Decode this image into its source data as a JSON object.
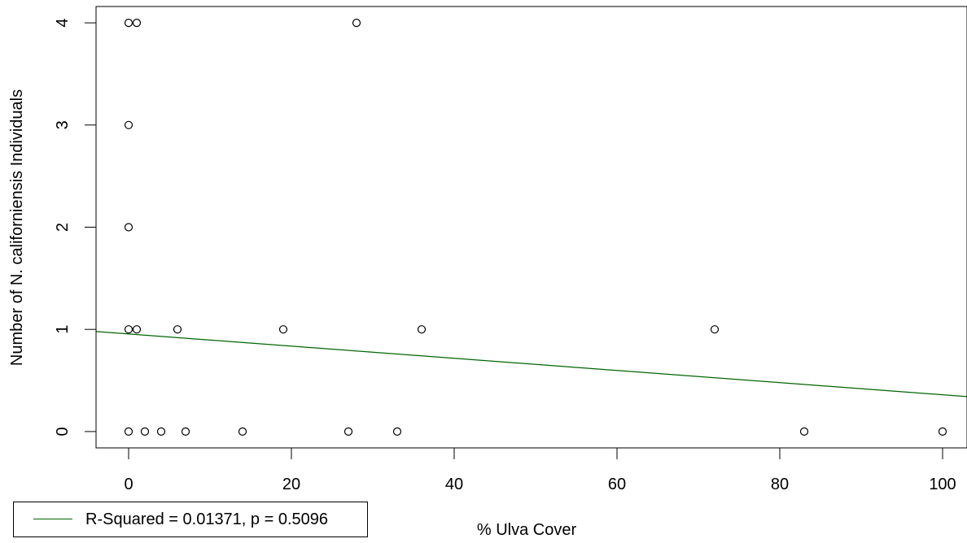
{
  "chart_data": {
    "type": "scatter",
    "title": "",
    "xlabel": "% Ulva Cover",
    "ylabel": "Number of N. californiensis Individuals",
    "xlim": [
      -4,
      103
    ],
    "ylim": [
      -0.16,
      4.16
    ],
    "x_ticks": [
      0,
      20,
      40,
      60,
      80,
      100
    ],
    "y_ticks": [
      0,
      1,
      2,
      3,
      4
    ],
    "grid": false,
    "points": [
      {
        "x": 0,
        "y": 4
      },
      {
        "x": 1,
        "y": 4
      },
      {
        "x": 28,
        "y": 4
      },
      {
        "x": 0,
        "y": 3
      },
      {
        "x": 0,
        "y": 2
      },
      {
        "x": 0,
        "y": 1
      },
      {
        "x": 1,
        "y": 1
      },
      {
        "x": 6,
        "y": 1
      },
      {
        "x": 19,
        "y": 1
      },
      {
        "x": 36,
        "y": 1
      },
      {
        "x": 72,
        "y": 1
      },
      {
        "x": 0,
        "y": 0
      },
      {
        "x": 2,
        "y": 0
      },
      {
        "x": 4,
        "y": 0
      },
      {
        "x": 7,
        "y": 0
      },
      {
        "x": 14,
        "y": 0
      },
      {
        "x": 27,
        "y": 0
      },
      {
        "x": 33,
        "y": 0
      },
      {
        "x": 83,
        "y": 0
      },
      {
        "x": 100,
        "y": 0
      }
    ],
    "fit_line": {
      "intercept": 0.955,
      "slope": -0.00595,
      "color": "#006400"
    },
    "legend": {
      "position": "bottom-left",
      "entries": [
        {
          "label": "R-Squared = 0.01371, p = 0.5096",
          "color": "#006400"
        }
      ]
    }
  }
}
